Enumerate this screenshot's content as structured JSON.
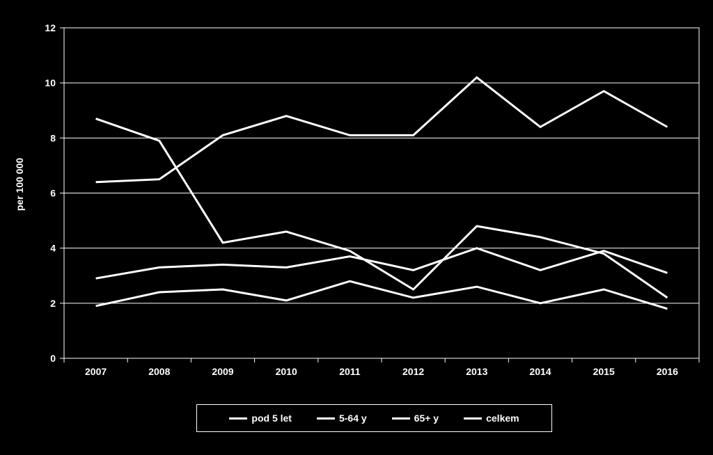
{
  "chart_data": {
    "type": "line",
    "x": [
      "2007",
      "2008",
      "2009",
      "2010",
      "2011",
      "2012",
      "2013",
      "2014",
      "2015",
      "2016"
    ],
    "ylabel": "per 100 000",
    "ylim": [
      0,
      12
    ],
    "yticks": [
      "0",
      "2",
      "4",
      "6",
      "8",
      "10",
      "12"
    ],
    "grid": true,
    "legend_position": "bottom",
    "line_color": "#ffffff",
    "background": "#000000",
    "series": [
      {
        "name": "pod 5 let",
        "values": [
          6.4,
          6.5,
          8.1,
          8.8,
          8.1,
          8.1,
          10.2,
          8.4,
          9.7,
          8.4
        ]
      },
      {
        "name": "5-64 y",
        "values": [
          1.9,
          2.4,
          2.5,
          2.1,
          2.8,
          2.2,
          2.6,
          2.0,
          2.5,
          1.8
        ]
      },
      {
        "name": "65+ y",
        "values": [
          8.7,
          7.9,
          4.2,
          4.6,
          3.9,
          2.5,
          4.8,
          4.4,
          3.8,
          2.2
        ]
      },
      {
        "name": "celkem",
        "values": [
          2.9,
          3.3,
          3.4,
          3.3,
          3.7,
          3.2,
          4.0,
          3.2,
          3.9,
          3.1
        ]
      }
    ]
  }
}
